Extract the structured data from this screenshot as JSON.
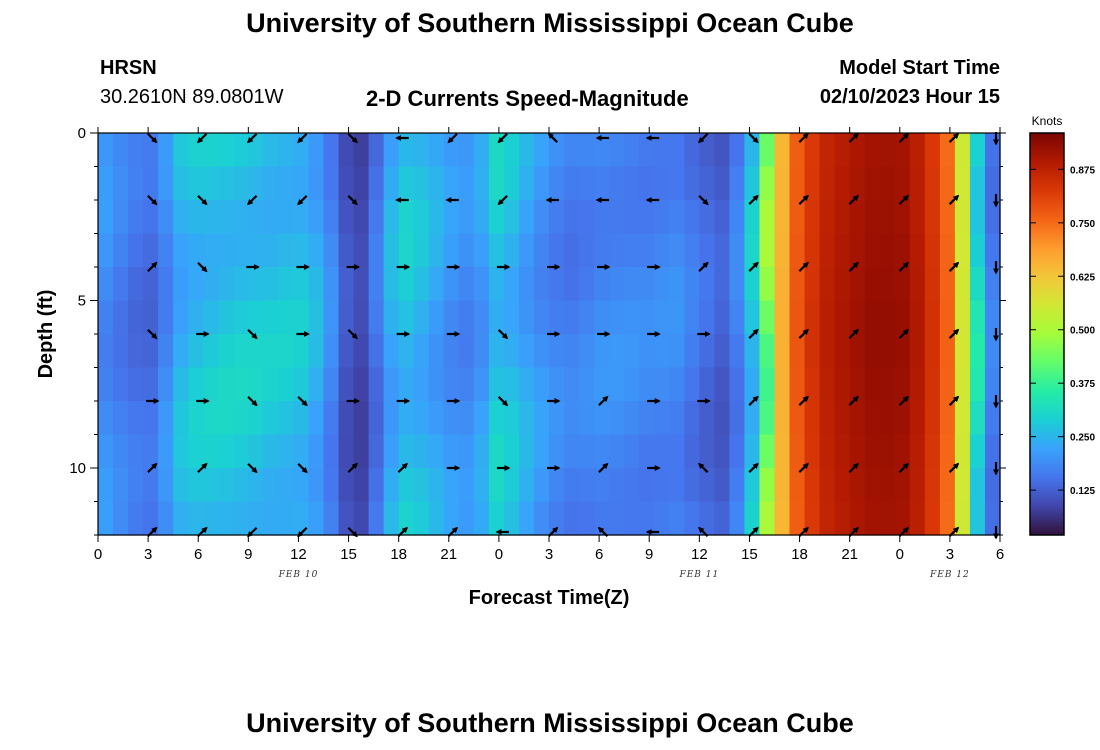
{
  "header": {
    "title": "University of Southern Mississippi Ocean Cube",
    "station": "HRSN",
    "location": "30.2610N  89.0801W",
    "subtitle": "2-D Currents Speed-Magnitude",
    "model_start_label": "Model Start Time",
    "model_start_value": "02/10/2023 Hour 15"
  },
  "footer": {
    "title": "University of Southern Mississippi Ocean Cube"
  },
  "chart_data": {
    "type": "heatmap",
    "xlabel": "Forecast Time(Z)",
    "ylabel": "Depth (ft)",
    "x_tick_labels": [
      "0",
      "3",
      "6",
      "9",
      "12",
      "15",
      "18",
      "21",
      "0",
      "3",
      "6",
      "9",
      "12",
      "15",
      "18",
      "21",
      "0",
      "3",
      "6"
    ],
    "x_range_hours": [
      0,
      54
    ],
    "y_ticks": [
      0,
      5,
      10
    ],
    "y_range_ft": [
      0,
      12
    ],
    "date_labels": [
      {
        "label": "FEB 10",
        "hour": 12
      },
      {
        "label": "FEB 11",
        "hour": 36
      },
      {
        "label": "FEB 12",
        "hour": 51
      }
    ],
    "colorbar": {
      "unit": "Knots",
      "ticks": [
        "0.125",
        "0.250",
        "0.375",
        "0.500",
        "0.625",
        "0.750",
        "0.875"
      ],
      "range": [
        0.02,
        0.96
      ],
      "colors": [
        "#30123b",
        "#4145ab",
        "#4675ed",
        "#39a2fc",
        "#1bcfd4",
        "#24eca6",
        "#61fc6c",
        "#a4fc3b",
        "#d1e834",
        "#f3c63a",
        "#fe9b2d",
        "#f36315",
        "#d93806",
        "#b11901",
        "#7a0403"
      ]
    },
    "time_profile_hours": [
      0,
      1.5,
      3,
      4,
      5,
      6,
      7.5,
      9,
      10.5,
      12,
      13.5,
      14.5,
      15.5,
      16.5,
      18,
      19.5,
      21,
      22.5,
      24,
      25.5,
      27,
      28.5,
      30,
      31.5,
      33,
      34.5,
      36,
      37.5,
      38.5,
      39.5,
      40.5,
      42,
      43.5,
      45,
      46.5,
      48,
      49.5,
      51,
      52,
      53,
      54
    ],
    "time_profile_speed_knots": [
      0.22,
      0.18,
      0.15,
      0.2,
      0.27,
      0.29,
      0.3,
      0.3,
      0.29,
      0.29,
      0.24,
      0.14,
      0.08,
      0.15,
      0.3,
      0.27,
      0.22,
      0.2,
      0.31,
      0.25,
      0.2,
      0.18,
      0.2,
      0.2,
      0.19,
      0.2,
      0.16,
      0.13,
      0.2,
      0.34,
      0.6,
      0.8,
      0.88,
      0.91,
      0.93,
      0.93,
      0.88,
      0.75,
      0.5,
      0.25,
      0.12
    ],
    "vector_hours": [
      3,
      6,
      9,
      12,
      15,
      18,
      21,
      24,
      27,
      30,
      33,
      36,
      39,
      42,
      45,
      48,
      51,
      54
    ],
    "vector_depths_ft": [
      0,
      2,
      4,
      6,
      8,
      10,
      12
    ],
    "vector_directions_deg": [
      [
        135,
        225,
        225,
        225,
        135,
        270,
        225,
        225,
        315,
        270,
        270,
        225,
        135,
        45,
        45,
        45,
        45,
        180
      ],
      [
        135,
        135,
        225,
        225,
        135,
        270,
        270,
        225,
        270,
        270,
        270,
        135,
        45,
        45,
        45,
        45,
        45,
        180
      ],
      [
        45,
        135,
        90,
        90,
        90,
        90,
        90,
        90,
        90,
        90,
        90,
        45,
        45,
        45,
        45,
        45,
        45,
        180
      ],
      [
        135,
        90,
        135,
        90,
        135,
        90,
        90,
        135,
        90,
        90,
        90,
        90,
        45,
        45,
        45,
        45,
        45,
        180
      ],
      [
        90,
        90,
        135,
        135,
        90,
        90,
        90,
        135,
        90,
        45,
        90,
        90,
        45,
        45,
        45,
        45,
        45,
        180
      ],
      [
        45,
        45,
        135,
        135,
        45,
        45,
        90,
        90,
        90,
        45,
        90,
        315,
        45,
        45,
        45,
        45,
        45,
        180
      ],
      [
        45,
        45,
        225,
        225,
        135,
        45,
        45,
        270,
        45,
        315,
        270,
        315,
        45,
        45,
        45,
        45,
        45,
        180
      ]
    ]
  }
}
